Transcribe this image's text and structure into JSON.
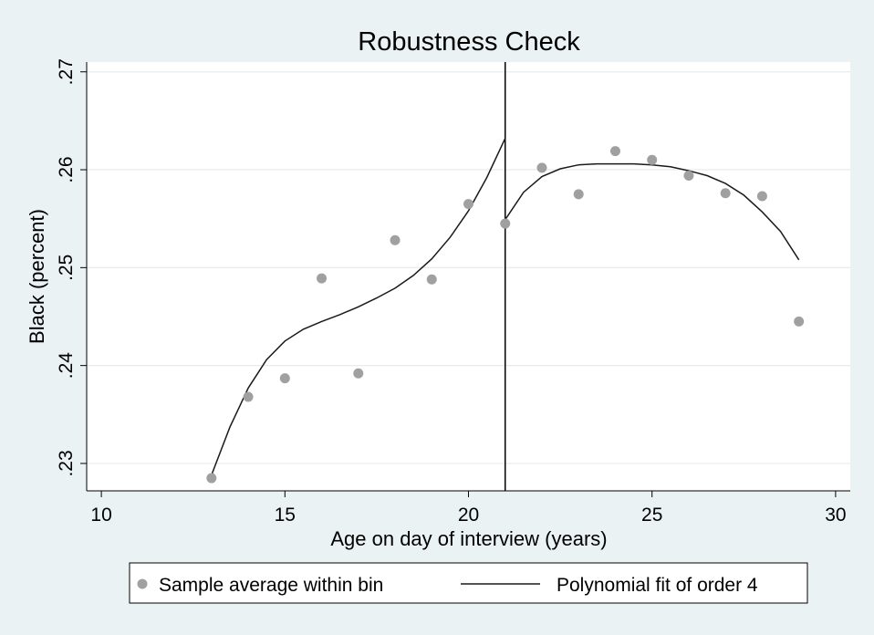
{
  "chart_data": {
    "type": "scatter",
    "title": "Robustness Check",
    "xlabel": "Age on day of interview (years)",
    "ylabel": "Black (percent)",
    "xlim": [
      9.6,
      30.4
    ],
    "ylim": [
      0.2272,
      0.271
    ],
    "x_ticks": [
      10,
      15,
      20,
      25,
      30
    ],
    "x_tick_labels": [
      "10",
      "15",
      "20",
      "25",
      "30"
    ],
    "y_ticks": [
      0.23,
      0.24,
      0.25,
      0.26,
      0.27
    ],
    "y_tick_labels": [
      ".23",
      ".24",
      ".25",
      ".26",
      ".27"
    ],
    "grid": "horizontal",
    "cutoff_x": 21,
    "legend_position": "bottom",
    "series": [
      {
        "name": "Sample average within bin",
        "kind": "scatter",
        "color": "#a0a0a0",
        "x": [
          13,
          14,
          15,
          16,
          17,
          18,
          19,
          20,
          21,
          22,
          23,
          24,
          25,
          26,
          27,
          28,
          29
        ],
        "y": [
          0.2285,
          0.2368,
          0.2387,
          0.2489,
          0.2392,
          0.2528,
          0.2488,
          0.2565,
          0.2545,
          0.2602,
          0.2575,
          0.2619,
          0.261,
          0.2594,
          0.2576,
          0.2573,
          0.2445
        ]
      },
      {
        "name": "Polynomial fit of order 4",
        "kind": "line",
        "color": "#1a1a1a",
        "segments": [
          {
            "x": [
              13,
              13.5,
              14,
              14.5,
              15,
              15.5,
              16,
              16.5,
              17,
              17.5,
              18,
              18.5,
              19,
              19.5,
              20,
              20.5,
              21
            ],
            "y": [
              0.2288,
              0.2337,
              0.2377,
              0.2406,
              0.2425,
              0.2437,
              0.2445,
              0.2452,
              0.246,
              0.2469,
              0.2479,
              0.2492,
              0.2509,
              0.2531,
              0.2558,
              0.2592,
              0.2632
            ]
          },
          {
            "x": [
              21,
              21.5,
              22,
              22.5,
              23,
              23.5,
              24,
              24.5,
              25,
              25.5,
              26,
              26.5,
              27,
              27.5,
              28,
              28.5,
              29
            ],
            "y": [
              0.2549,
              0.2577,
              0.2593,
              0.2601,
              0.2605,
              0.2606,
              0.2606,
              0.2606,
              0.2605,
              0.2603,
              0.2599,
              0.2594,
              0.2586,
              0.2574,
              0.2557,
              0.2537,
              0.2508
            ]
          }
        ]
      }
    ]
  }
}
